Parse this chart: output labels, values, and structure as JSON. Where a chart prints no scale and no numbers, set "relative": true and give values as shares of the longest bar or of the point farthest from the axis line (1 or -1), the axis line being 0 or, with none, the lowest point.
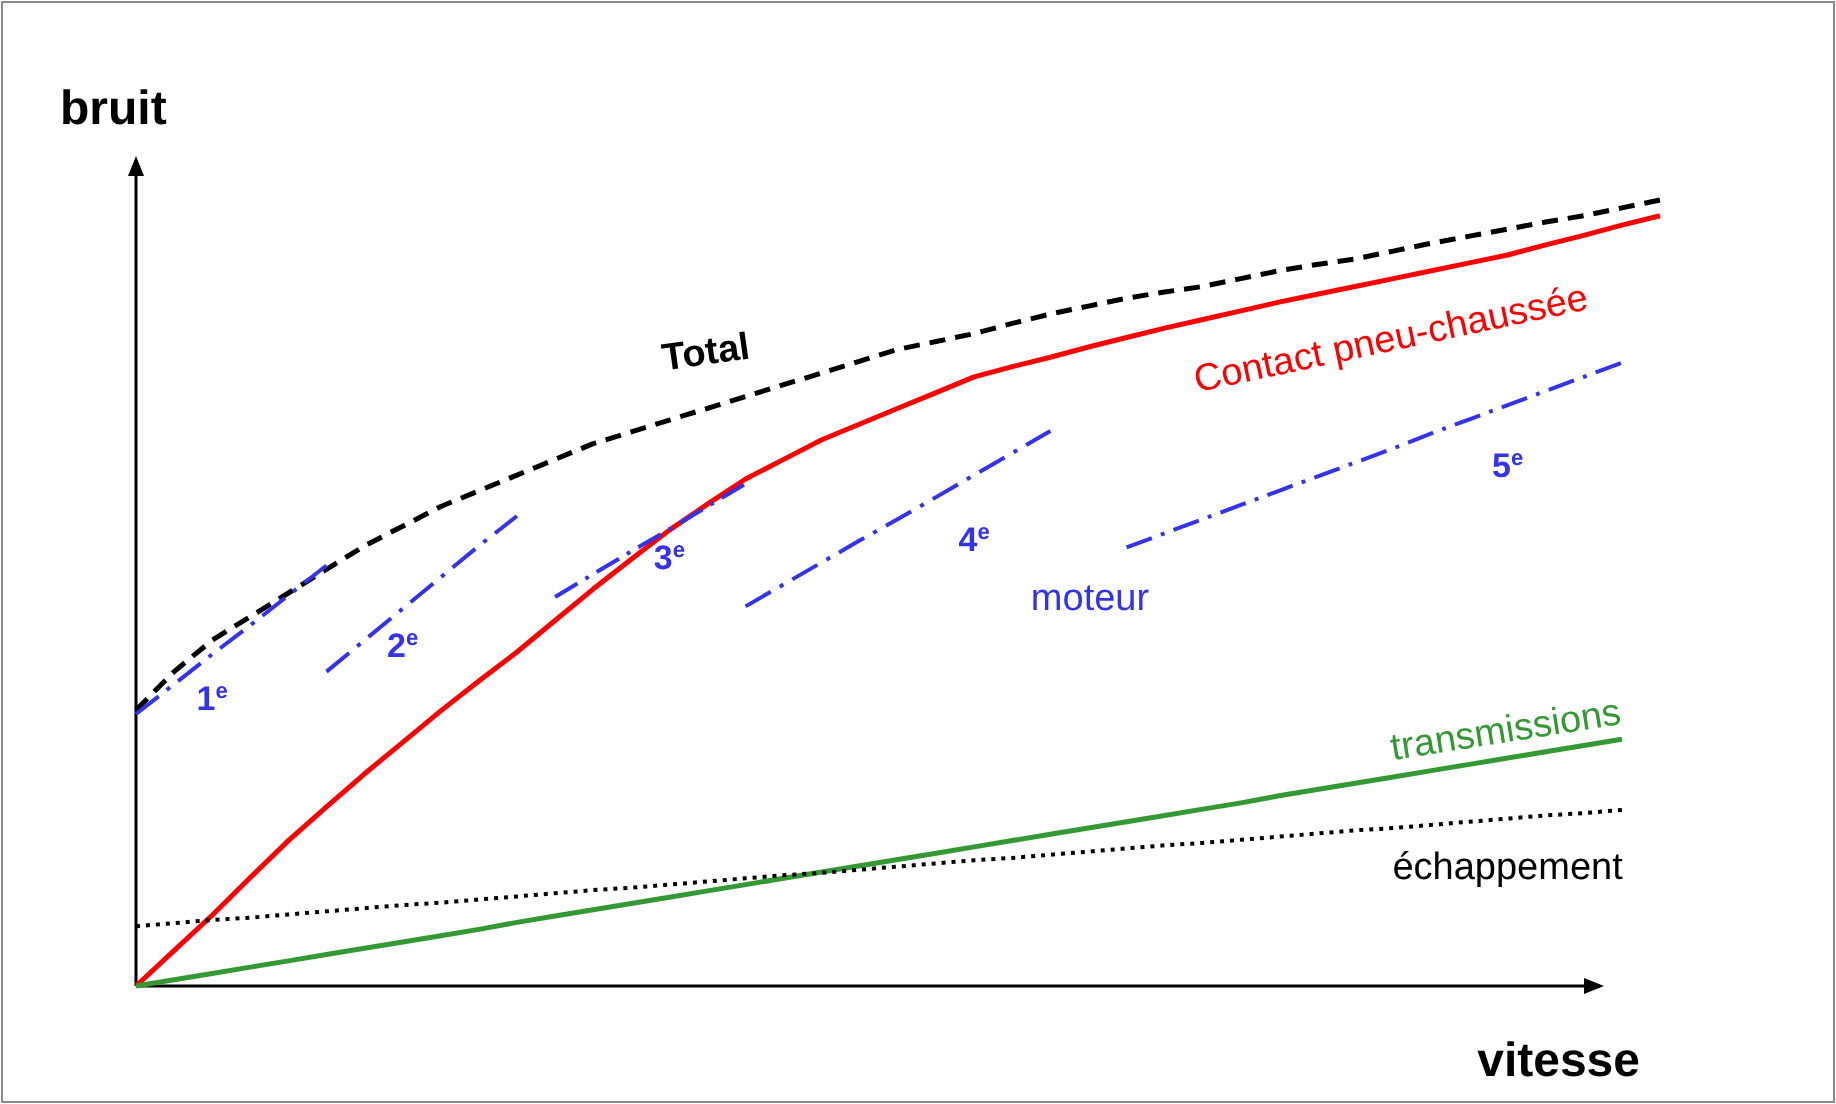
{
  "chart_data": {
    "type": "line",
    "relative": true,
    "xlabel": "vitesse",
    "ylabel": "bruit",
    "marker": "none",
    "categories": [
      null,
      null,
      null,
      null,
      null,
      null,
      null,
      null,
      null,
      null,
      null,
      null,
      null,
      null,
      null,
      null,
      null,
      null,
      null,
      null,
      null,
      null,
      null,
      null,
      null,
      null,
      null,
      null,
      null,
      null,
      null,
      null,
      null,
      null,
      null,
      null,
      null,
      null,
      null,
      null,
      null
    ],
    "annotations": [
      "moteur"
    ],
    "series": [
      {
        "name": "Total",
        "color": "#000000",
        "line_style": "dashed",
        "values": [
          0.351,
          0.4,
          0.44,
          0.47,
          0.5,
          0.53,
          0.56,
          0.585,
          0.61,
          0.63,
          0.65,
          0.67,
          0.69,
          0.705,
          0.72,
          0.735,
          0.75,
          0.765,
          0.78,
          0.795,
          0.81,
          0.82,
          0.83,
          0.843,
          0.855,
          0.865,
          0.875,
          0.883,
          0.89,
          0.9,
          0.91,
          0.918,
          0.925,
          0.935,
          0.945,
          0.954,
          0.963,
          0.972,
          0.98,
          0.99,
          1
        ]
      },
      {
        "name": "Contact pneu-chaussée",
        "color": "#ff0000",
        "line_style": "solid",
        "values": [
          0,
          0.045,
          0.09,
          0.138,
          0.185,
          0.228,
          0.27,
          0.31,
          0.35,
          0.388,
          0.425,
          0.465,
          0.505,
          0.543,
          0.58,
          0.613,
          0.645,
          0.67,
          0.695,
          0.715,
          0.735,
          0.755,
          0.775,
          0.788,
          0.8,
          0.813,
          0.825,
          0.837,
          0.848,
          0.859,
          0.87,
          0.88,
          0.89,
          0.9,
          0.91,
          0.92,
          0.93,
          0.943,
          0.955,
          0.968,
          0.98
        ]
      },
      {
        "name": "1$^{e}$",
        "color": "#3333ee",
        "line_style": "dashdot",
        "values": [
          0.346,
          0.384,
          0.422,
          0.459,
          0.497,
          0.535,
          null,
          null,
          null,
          null,
          null,
          null,
          null,
          null,
          null,
          null,
          null,
          null,
          null,
          null,
          null,
          null,
          null,
          null,
          null,
          null,
          null,
          null,
          null,
          null,
          null,
          null,
          null,
          null,
          null,
          null,
          null,
          null,
          null,
          null,
          null
        ]
      },
      {
        "name": "2$^{e}$",
        "color": "#3333ee",
        "line_style": "dashdot",
        "values": [
          null,
          null,
          null,
          null,
          null,
          0.4,
          0.44,
          0.48,
          0.52,
          0.56,
          0.598,
          null,
          null,
          null,
          null,
          null,
          null,
          null,
          null,
          null,
          null,
          null,
          null,
          null,
          null,
          null,
          null,
          null,
          null,
          null,
          null,
          null,
          null,
          null,
          null,
          null,
          null,
          null,
          null,
          null,
          null
        ]
      },
      {
        "name": "3$^{e}$",
        "color": "#3333ee",
        "line_style": "dashdot",
        "values": [
          null,
          null,
          null,
          null,
          null,
          null,
          null,
          null,
          null,
          null,
          null,
          0.495,
          0.524,
          0.553,
          0.581,
          0.61,
          0.639,
          null,
          null,
          null,
          null,
          null,
          null,
          null,
          null,
          null,
          null,
          null,
          null,
          null,
          null,
          null,
          null,
          null,
          null,
          null,
          null,
          null,
          null,
          null,
          null
        ]
      },
      {
        "name": "4$^{e}$",
        "color": "#3333ee",
        "line_style": "dashdot",
        "values": [
          null,
          null,
          null,
          null,
          null,
          null,
          null,
          null,
          null,
          null,
          null,
          null,
          null,
          null,
          null,
          null,
          0.483,
          0.511,
          0.539,
          0.567,
          0.594,
          0.622,
          0.65,
          0.678,
          0.706,
          null,
          null,
          null,
          null,
          null,
          null,
          null,
          null,
          null,
          null,
          null,
          null,
          null,
          null,
          null,
          null
        ]
      },
      {
        "name": "5$^{e}$",
        "color": "#3333ee",
        "line_style": "dashdot",
        "values": [
          null,
          null,
          null,
          null,
          null,
          null,
          null,
          null,
          null,
          null,
          null,
          null,
          null,
          null,
          null,
          null,
          null,
          null,
          null,
          null,
          null,
          null,
          null,
          null,
          null,
          null,
          0.558,
          0.576,
          0.594,
          0.612,
          0.63,
          0.648,
          0.666,
          0.684,
          0.703,
          0.721,
          0.739,
          0.757,
          0.775,
          0.793,
          null
        ]
      },
      {
        "name": "transmissions",
        "color": "#339933",
        "line_style": "solid",
        "values": [
          0,
          0.008,
          0.016,
          0.024,
          0.032,
          0.04,
          0.048,
          0.056,
          0.064,
          0.072,
          0.081,
          0.089,
          0.097,
          0.105,
          0.113,
          0.121,
          0.129,
          0.137,
          0.145,
          0.153,
          0.161,
          0.169,
          0.177,
          0.185,
          0.193,
          0.201,
          0.209,
          0.217,
          0.225,
          0.233,
          0.242,
          0.25,
          0.258,
          0.266,
          0.274,
          0.282,
          0.29,
          0.298,
          0.306,
          0.314,
          null
        ]
      },
      {
        "name": "échappement",
        "color": "#000000",
        "line_style": "dotted",
        "values": [
          0.076,
          0.08,
          0.084,
          0.087,
          0.091,
          0.095,
          0.099,
          0.103,
          0.106,
          0.11,
          0.114,
          0.118,
          0.122,
          0.125,
          0.129,
          0.133,
          0.137,
          0.141,
          0.144,
          0.148,
          0.152,
          0.156,
          0.16,
          0.163,
          0.167,
          0.171,
          0.175,
          0.179,
          0.182,
          0.186,
          0.19,
          0.194,
          0.198,
          0.201,
          0.205,
          0.209,
          0.213,
          0.217,
          0.22,
          0.224,
          null
        ]
      }
    ]
  }
}
